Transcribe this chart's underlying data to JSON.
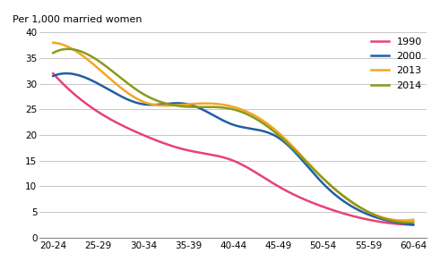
{
  "x_labels": [
    "20-24",
    "25-29",
    "30-34",
    "35-39",
    "40-44",
    "45-49",
    "50-54",
    "55-59",
    "60-64"
  ],
  "series": {
    "1990": [
      32,
      24.5,
      20,
      17,
      15,
      10,
      6,
      3.5,
      2.5
    ],
    "2000": [
      31.5,
      30,
      26,
      26,
      22,
      19.5,
      10.5,
      4.5,
      2.5
    ],
    "2013": [
      38,
      33,
      26.5,
      26,
      25.5,
      20.5,
      11.5,
      5,
      3.5
    ],
    "2014": [
      36,
      34.5,
      28,
      25.5,
      25,
      20,
      11.5,
      5,
      3
    ]
  },
  "colors": {
    "1990": "#e8417a",
    "2000": "#1f5fa6",
    "2013": "#f5a623",
    "2014": "#8a9a1a"
  },
  "line_width": 1.8,
  "ylabel": "Per 1,000 married women",
  "ylim": [
    0,
    40
  ],
  "yticks": [
    0,
    5,
    10,
    15,
    20,
    25,
    30,
    35,
    40
  ],
  "grid_color": "#c8c8c8",
  "background_color": "#ffffff",
  "legend_order": [
    "1990",
    "2000",
    "2013",
    "2014"
  ],
  "legend_fontsize": 8,
  "label_fontsize": 8,
  "tick_fontsize": 7.5
}
